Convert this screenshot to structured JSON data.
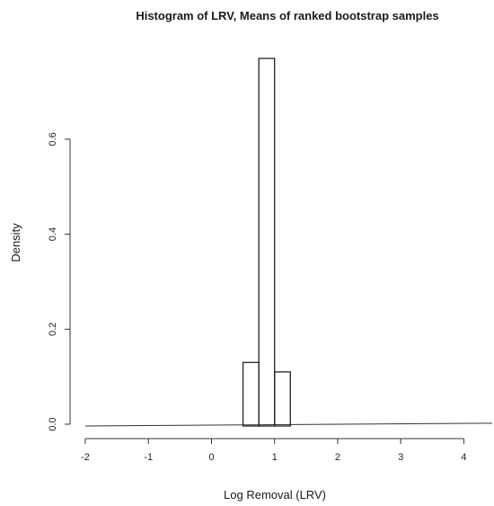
{
  "chart_data": {
    "type": "bar",
    "title": "Histogram of LRV, Means of ranked bootstrap samples",
    "xlabel": "Log Removal (LRV)",
    "ylabel": "Density",
    "xlim": [
      -2,
      4.45
    ],
    "ylim": [
      0,
      0.77
    ],
    "x_ticks": [
      {
        "value": -2,
        "label": "-2"
      },
      {
        "value": -1,
        "label": "-1"
      },
      {
        "value": 0,
        "label": "0"
      },
      {
        "value": 1,
        "label": "1"
      },
      {
        "value": 2,
        "label": "2"
      },
      {
        "value": 3,
        "label": "3"
      },
      {
        "value": 4,
        "label": "4"
      }
    ],
    "y_ticks": [
      {
        "value": 0.0,
        "label": "0.0"
      },
      {
        "value": 0.2,
        "label": "0.2"
      },
      {
        "value": 0.4,
        "label": "0.4"
      },
      {
        "value": 0.6,
        "label": "0.6"
      }
    ],
    "bins": [
      {
        "x0": 0.5,
        "x1": 0.75,
        "density": 0.13
      },
      {
        "x0": 0.75,
        "x1": 1.0,
        "density": 0.77
      },
      {
        "x0": 1.0,
        "x1": 1.25,
        "density": 0.11
      }
    ],
    "baseline_y": [
      0.0,
      0.006
    ],
    "grid": false,
    "legend": "none"
  }
}
